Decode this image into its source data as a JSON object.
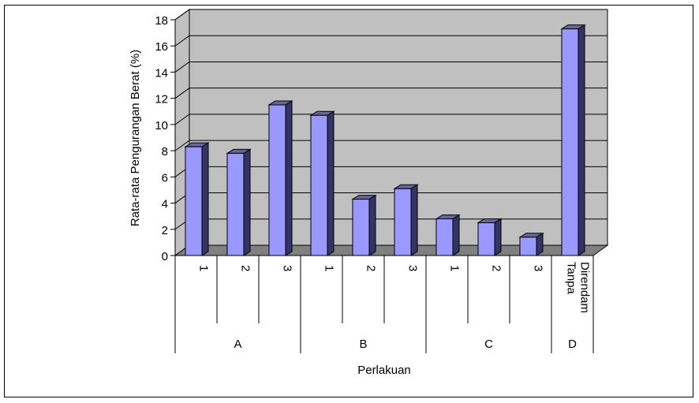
{
  "chart_data": {
    "type": "bar",
    "subtype": "3d-clustered-column",
    "ylabel": "Rata-rata Pengurangan Berat (%)",
    "xlabel": "Perlakuan",
    "ylim": [
      0,
      18
    ],
    "yticks": [
      0,
      2,
      4,
      6,
      8,
      10,
      12,
      14,
      16,
      18
    ],
    "grid": true,
    "legend": "none",
    "groups": [
      {
        "label": "A",
        "categories": [
          "1",
          "2",
          "3"
        ]
      },
      {
        "label": "B",
        "categories": [
          "1",
          "2",
          "3"
        ]
      },
      {
        "label": "C",
        "categories": [
          "1",
          "2",
          "3"
        ]
      },
      {
        "label": "D",
        "categories": [
          "Tanpa Direndam"
        ]
      }
    ],
    "categories": [
      "1",
      "2",
      "3",
      "1",
      "2",
      "3",
      "1",
      "2",
      "3",
      "Tanpa Direndam"
    ],
    "values": [
      8.3,
      7.8,
      11.5,
      10.7,
      4.3,
      5.1,
      2.8,
      2.5,
      1.4,
      17.3
    ],
    "colors": {
      "bar_front": "#9999ff",
      "bar_side": "#333366",
      "bar_top": "#666699",
      "wall": "#c0c0c0",
      "floor": "#808080"
    }
  }
}
